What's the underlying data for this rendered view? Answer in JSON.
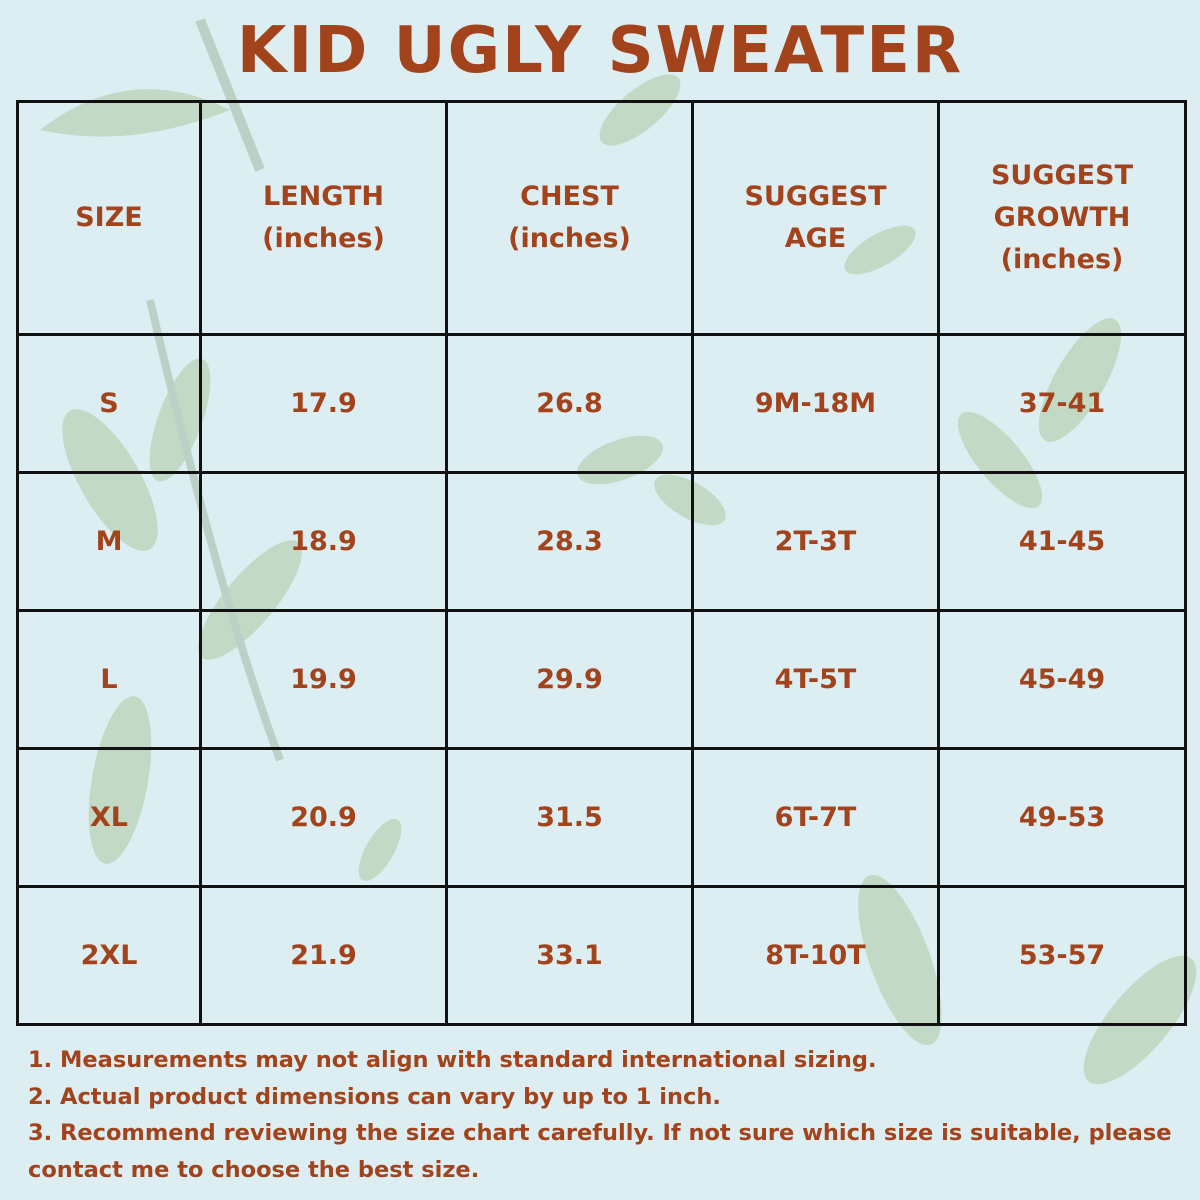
{
  "title": "KID UGLY SWEATER",
  "colors": {
    "background": "#ddeef2",
    "text": "#a3431c",
    "grid": "#111111",
    "leaf": "#a9c9a0"
  },
  "table": {
    "headers": [
      {
        "line1": "SIZE",
        "line2": "",
        "line3": ""
      },
      {
        "line1": "LENGTH",
        "line2": "(inches)",
        "line3": ""
      },
      {
        "line1": "CHEST",
        "line2": "(inches)",
        "line3": ""
      },
      {
        "line1": "SUGGEST",
        "line2": "AGE",
        "line3": ""
      },
      {
        "line1": "SUGGEST",
        "line2": "GROWTH",
        "line3": "(inches)"
      }
    ],
    "rows": [
      [
        "S",
        "17.9",
        "26.8",
        "9M-18M",
        "37-41"
      ],
      [
        "M",
        "18.9",
        "28.3",
        "2T-3T",
        "41-45"
      ],
      [
        "L",
        "19.9",
        "29.9",
        "4T-5T",
        "45-49"
      ],
      [
        "XL",
        "20.9",
        "31.5",
        "6T-7T",
        "49-53"
      ],
      [
        "2XL",
        "21.9",
        "33.1",
        "8T-10T",
        "53-57"
      ]
    ]
  },
  "notes": [
    "1. Measurements may not align with standard international sizing.",
    "2. Actual product dimensions can vary by up to 1 inch.",
    "3. Recommend reviewing the size chart carefully. If not sure which size is suitable, please contact me to choose the best size."
  ]
}
